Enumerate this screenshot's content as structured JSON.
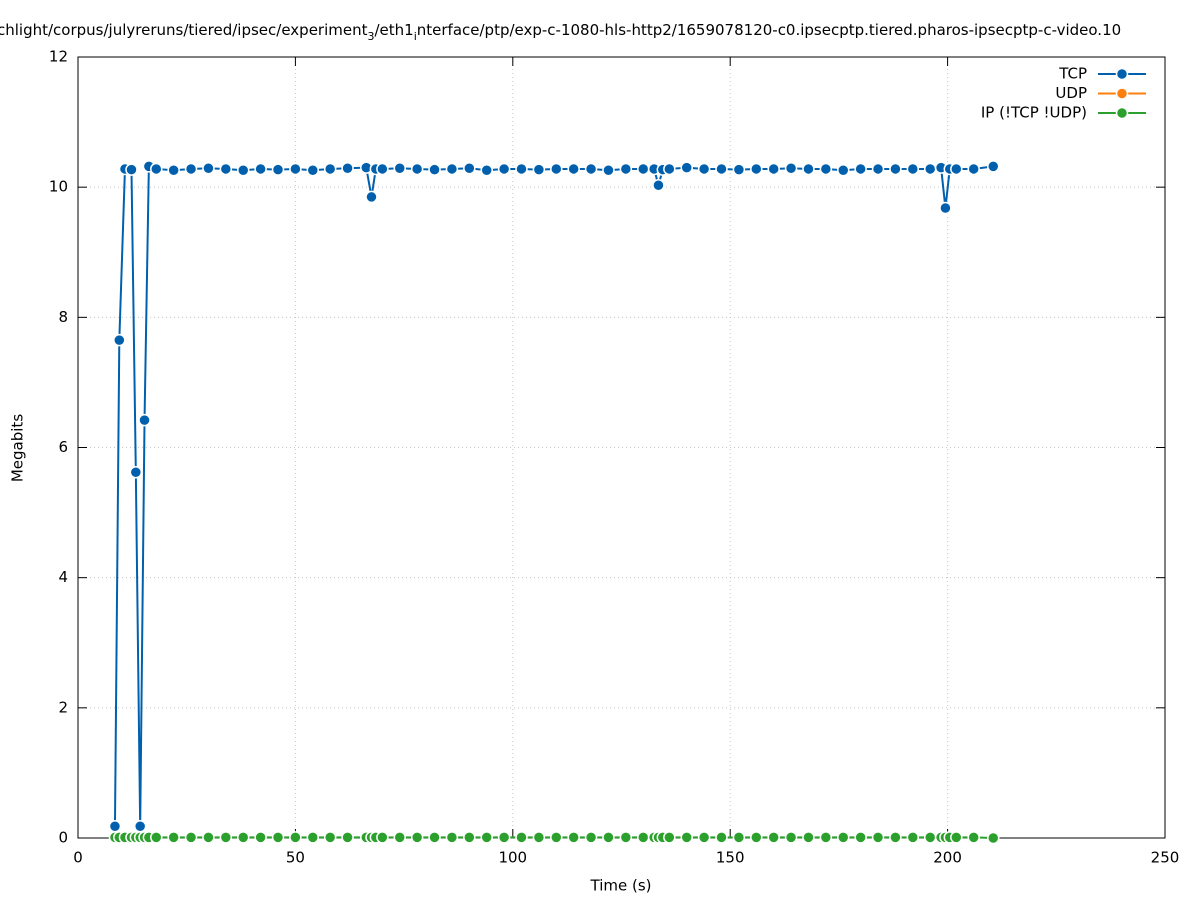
{
  "chart_data": {
    "type": "line",
    "title_parts": [
      {
        "text": "chlight/corpus/julyreruns/tiered/ipsec/experiment",
        "subscript": false
      },
      {
        "text": "3",
        "subscript": true
      },
      {
        "text": "/eth1",
        "subscript": false
      },
      {
        "text": "i",
        "subscript": true
      },
      {
        "text": "nterface/ptp/exp-c-1080-hls-http2/1659078120-c0.ipsecptp.tiered.pharos-ipsecptp-c-video.10",
        "subscript": false
      }
    ],
    "x_label": "Time (s)",
    "y_label": "Megabits",
    "xlim": [
      0,
      250
    ],
    "ylim": [
      0,
      12
    ],
    "xticks": [
      0,
      50,
      100,
      150,
      200,
      250
    ],
    "yticks": [
      0,
      2,
      4,
      6,
      8,
      10,
      12
    ],
    "grid": true,
    "legend": "top-right",
    "x": [
      8.5,
      9.5,
      10.8,
      12.3,
      13.3,
      14.3,
      15.3,
      16.3,
      18,
      22,
      26,
      30,
      34,
      38,
      42,
      46,
      50,
      54,
      58,
      62,
      66.3,
      67.5,
      68.5,
      70,
      74,
      78,
      82,
      86,
      90,
      94,
      98,
      102,
      106,
      110,
      114,
      118,
      122,
      126,
      130,
      132.5,
      133.5,
      134.5,
      136,
      140,
      144,
      148,
      152,
      156,
      160,
      164,
      168,
      172,
      176,
      180,
      184,
      188,
      192,
      196,
      198.5,
      199.5,
      200.5,
      202,
      206,
      210.5
    ],
    "series": [
      {
        "name": "TCP",
        "color": "#0060ad",
        "values": [
          0.18,
          7.65,
          10.28,
          10.27,
          5.62,
          0.18,
          6.42,
          10.32,
          10.28,
          10.26,
          10.28,
          10.29,
          10.28,
          10.26,
          10.28,
          10.27,
          10.28,
          10.26,
          10.28,
          10.29,
          10.3,
          9.85,
          10.28,
          10.28,
          10.29,
          10.28,
          10.27,
          10.28,
          10.29,
          10.26,
          10.28,
          10.28,
          10.27,
          10.28,
          10.28,
          10.28,
          10.26,
          10.28,
          10.28,
          10.28,
          10.03,
          10.27,
          10.28,
          10.3,
          10.28,
          10.28,
          10.27,
          10.28,
          10.28,
          10.29,
          10.28,
          10.28,
          10.26,
          10.28,
          10.28,
          10.28,
          10.28,
          10.28,
          10.3,
          9.68,
          10.28,
          10.28,
          10.28,
          10.32
        ]
      },
      {
        "name": "UDP",
        "color": "#ff7f0e",
        "values": [
          null,
          null,
          null,
          null,
          null,
          null,
          null,
          null,
          null,
          null,
          null,
          null,
          null,
          null,
          null,
          null,
          null,
          null,
          null,
          null,
          null,
          null,
          null,
          null,
          null,
          null,
          null,
          null,
          null,
          null,
          null,
          null,
          null,
          null,
          null,
          null,
          null,
          null,
          null,
          null,
          null,
          null,
          null,
          null,
          null,
          null,
          null,
          null,
          null,
          null,
          null,
          null,
          null,
          null,
          null,
          null,
          null,
          null,
          null,
          null,
          null,
          null,
          null,
          null
        ]
      },
      {
        "name": "IP (!TCP  !UDP)",
        "color": "#2ca02c",
        "values": [
          0.01,
          0.01,
          0.01,
          0.01,
          0.01,
          0.01,
          0.01,
          0.01,
          0.01,
          0.01,
          0.01,
          0.01,
          0.01,
          0.01,
          0.01,
          0.01,
          0.01,
          0.01,
          0.01,
          0.01,
          0.01,
          0.01,
          0.01,
          0.01,
          0.01,
          0.01,
          0.01,
          0.01,
          0.01,
          0.01,
          0.01,
          0.01,
          0.01,
          0.01,
          0.01,
          0.01,
          0.01,
          0.01,
          0.01,
          0.01,
          0.01,
          0.01,
          0.01,
          0.01,
          0.01,
          0.01,
          0.01,
          0.01,
          0.01,
          0.01,
          0.01,
          0.01,
          0.01,
          0.01,
          0.01,
          0.01,
          0.01,
          0.01,
          0.01,
          0.01,
          0.01,
          0.01,
          0.01,
          0
        ]
      }
    ]
  }
}
